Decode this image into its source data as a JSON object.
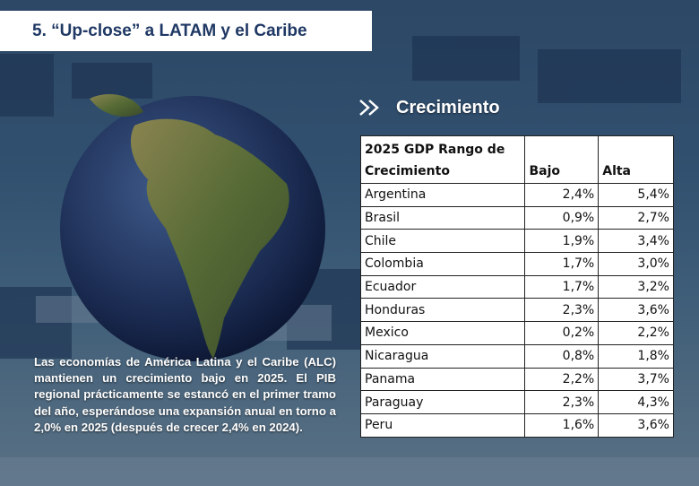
{
  "header": {
    "title": "5. “Up-close” a LATAM y el Caribe"
  },
  "section": {
    "title": "Crecimiento"
  },
  "table": {
    "header": [
      "2025 GDP Rango de Crecimiento",
      "Bajo",
      "Alta"
    ],
    "rows": [
      [
        "Argentina",
        "2,4%",
        "5,4%"
      ],
      [
        "Brasil",
        "0,9%",
        "2,7%"
      ],
      [
        "Chile",
        "1,9%",
        "3,4%"
      ],
      [
        "Colombia",
        "1,7%",
        "3,0%"
      ],
      [
        "Ecuador",
        "1,7%",
        "3,2%"
      ],
      [
        "Honduras",
        "2,3%",
        "3,6%"
      ],
      [
        "Mexico",
        "0,2%",
        "2,2%"
      ],
      [
        "Nicaragua",
        "0,8%",
        "1,8%"
      ],
      [
        "Panama",
        "2,2%",
        "3,7%"
      ],
      [
        "Paraguay",
        "2,3%",
        "4,3%"
      ],
      [
        "Peru",
        "1,6%",
        "3,6%"
      ]
    ]
  },
  "body": {
    "text": "Las economías de América Latina y el Caribe (ALC) mantienen un crecimiento bajo en 2025. El PIB regional prácticamente se estancó en el primer tramo del año, esperándose una expansión anual en torno a 2,0% en 2025 (después de crecer 2,4% en 2024)."
  }
}
